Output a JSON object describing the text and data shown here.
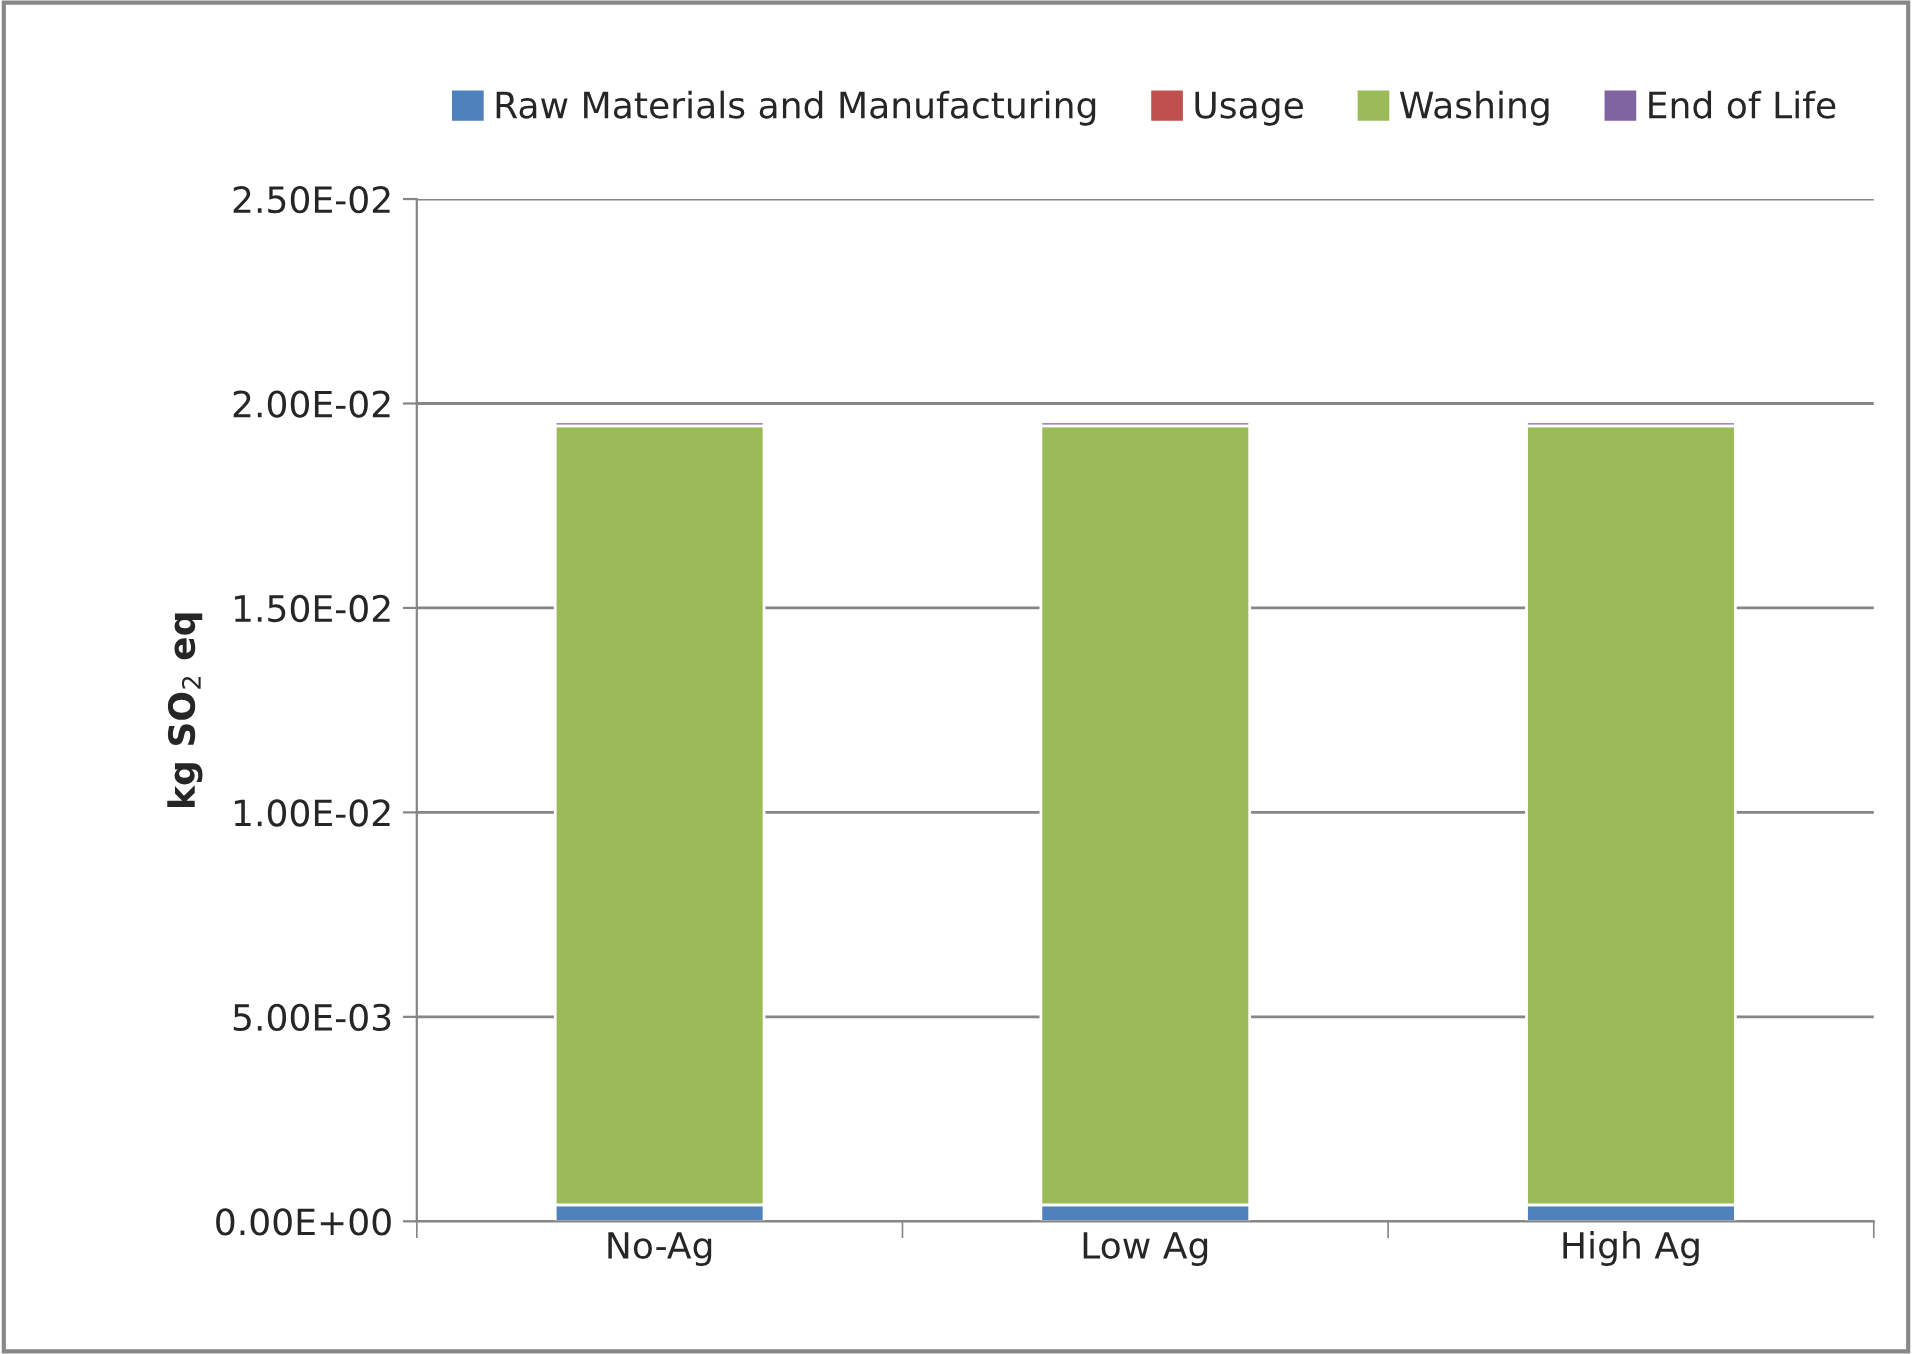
{
  "chart_data": {
    "type": "bar",
    "stacked": true,
    "ylabel": "kg SO$_{2}$ eq",
    "categories": [
      "No-Ag",
      "Low Ag",
      "High Ag"
    ],
    "series": [
      {
        "name": "Raw Materials and Manufacturing",
        "color": "#4f81bd",
        "values": [
          0.0004,
          0.0004,
          0.0004
        ]
      },
      {
        "name": "Usage",
        "color": "#c0504d",
        "values": [
          null,
          null,
          null
        ]
      },
      {
        "name": "Washing",
        "color": "#9bbb59",
        "values": [
          0.01905,
          0.01905,
          0.01905
        ]
      },
      {
        "name": "End of Life",
        "color": "#8064a2",
        "values": [
          0.0001,
          0.0001,
          0.0001
        ]
      }
    ],
    "ylim": [
      0,
      0.025
    ],
    "yticks": [
      {
        "value": 0,
        "label": "0.00E+00"
      },
      {
        "value": 0.005,
        "label": "5.00E-03"
      },
      {
        "value": 0.01,
        "label": "1.00E-02"
      },
      {
        "value": 0.015,
        "label": "1.50E-02"
      },
      {
        "value": 0.02,
        "label": "2.00E-02"
      },
      {
        "value": 0.025,
        "label": "2.50E-02"
      }
    ],
    "grid": "y",
    "legend": "top"
  }
}
